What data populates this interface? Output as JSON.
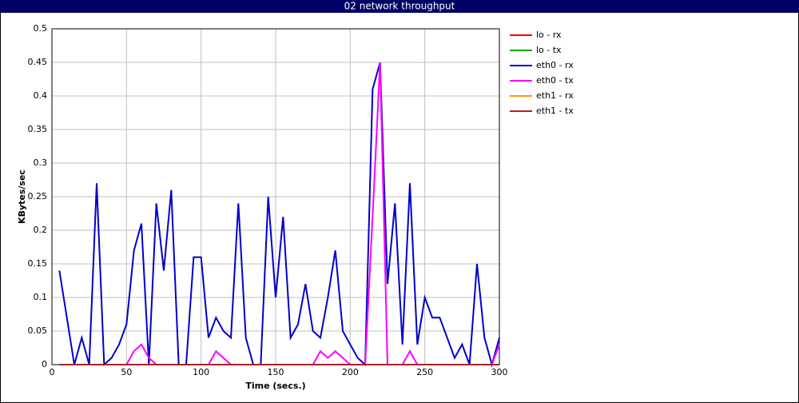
{
  "chart_data": {
    "type": "line",
    "title": "02 network throughput",
    "x_label": "Time (secs.)",
    "y_label": "KBytes/sec",
    "xlim": [
      0,
      300
    ],
    "xticks": [
      0,
      50,
      100,
      150,
      200,
      250,
      300
    ],
    "ylim": [
      0,
      0.5
    ],
    "yticks": [
      0,
      0.05,
      0.1,
      0.15,
      0.2,
      0.25,
      0.3,
      0.35,
      0.4,
      0.45,
      0.5
    ],
    "grid": true,
    "legend": "right",
    "x": [
      5,
      10,
      15,
      20,
      25,
      30,
      35,
      40,
      45,
      50,
      55,
      60,
      65,
      70,
      75,
      80,
      85,
      90,
      95,
      100,
      105,
      110,
      115,
      120,
      125,
      130,
      135,
      140,
      145,
      150,
      155,
      160,
      165,
      170,
      175,
      180,
      185,
      190,
      195,
      200,
      205,
      210,
      215,
      220,
      225,
      230,
      235,
      240,
      245,
      250,
      255,
      260,
      265,
      270,
      275,
      280,
      285,
      290,
      295,
      300
    ],
    "series": [
      {
        "name": "lo - rx",
        "color": "#ff0000",
        "values": [
          0,
          0,
          0,
          0,
          0,
          0,
          0,
          0,
          0,
          0,
          0,
          0,
          0,
          0,
          0,
          0,
          0,
          0,
          0,
          0,
          0,
          0,
          0,
          0,
          0,
          0,
          0,
          0,
          0,
          0,
          0,
          0,
          0,
          0,
          0,
          0,
          0,
          0,
          0,
          0,
          0,
          0,
          0,
          0,
          0,
          0,
          0,
          0,
          0,
          0,
          0,
          0,
          0,
          0,
          0,
          0,
          0,
          0,
          0,
          0
        ]
      },
      {
        "name": "lo - tx",
        "color": "#00aa00",
        "values": [
          0,
          0,
          0,
          0,
          0,
          0,
          0,
          0,
          0,
          0,
          0,
          0,
          0,
          0,
          0,
          0,
          0,
          0,
          0,
          0,
          0,
          0,
          0,
          0,
          0,
          0,
          0,
          0,
          0,
          0,
          0,
          0,
          0,
          0,
          0,
          0,
          0,
          0,
          0,
          0,
          0,
          0,
          0,
          0,
          0,
          0,
          0,
          0,
          0,
          0,
          0,
          0,
          0,
          0,
          0,
          0,
          0,
          0,
          0,
          0
        ]
      },
      {
        "name": "eth0 - rx",
        "color": "#0000cc",
        "values": [
          0.14,
          0.07,
          0,
          0.04,
          0,
          0.27,
          0,
          0.01,
          0.03,
          0.06,
          0.17,
          0.21,
          0,
          0.24,
          0.14,
          0.26,
          0,
          0,
          0.16,
          0.16,
          0.04,
          0.07,
          0.05,
          0.04,
          0.24,
          0.04,
          0,
          0,
          0.25,
          0.1,
          0.22,
          0.04,
          0.06,
          0.12,
          0.05,
          0.04,
          0.1,
          0.17,
          0.05,
          0.03,
          0.01,
          0,
          0.41,
          0.45,
          0.12,
          0.24,
          0.03,
          0.27,
          0.03,
          0.1,
          0.07,
          0.07,
          0.04,
          0.01,
          0.03,
          0,
          0.15,
          0.04,
          0,
          0.04
        ]
      },
      {
        "name": "eth0 - tx",
        "color": "#ff00ff",
        "values": [
          0,
          0,
          0,
          0,
          0,
          0,
          0,
          0,
          0,
          0,
          0.02,
          0.03,
          0.01,
          0,
          0,
          0,
          0,
          0,
          0,
          0,
          0,
          0.02,
          0.01,
          0,
          0,
          0,
          0,
          0,
          0,
          0,
          0,
          0,
          0,
          0,
          0,
          0.02,
          0.01,
          0.02,
          0.01,
          0,
          0,
          0,
          0.22,
          0.45,
          0,
          0,
          0,
          0.02,
          0,
          0,
          0,
          0,
          0,
          0,
          0,
          0,
          0,
          0,
          0,
          0.03
        ]
      },
      {
        "name": "eth1 - rx",
        "color": "#ff9900",
        "values": [
          0,
          0,
          0,
          0,
          0,
          0,
          0,
          0,
          0,
          0,
          0,
          0,
          0,
          0,
          0,
          0,
          0,
          0,
          0,
          0,
          0,
          0,
          0,
          0,
          0,
          0,
          0,
          0,
          0,
          0,
          0,
          0,
          0,
          0,
          0,
          0,
          0,
          0,
          0,
          0,
          0,
          0,
          0,
          0,
          0,
          0,
          0,
          0,
          0,
          0,
          0,
          0,
          0,
          0,
          0,
          0,
          0,
          0,
          0,
          0
        ]
      },
      {
        "name": "eth1 - tx",
        "color": "#aa2222",
        "values": [
          0,
          0,
          0,
          0,
          0,
          0,
          0,
          0,
          0,
          0,
          0,
          0,
          0,
          0,
          0,
          0,
          0,
          0,
          0,
          0,
          0,
          0,
          0,
          0,
          0,
          0,
          0,
          0,
          0,
          0,
          0,
          0,
          0,
          0,
          0,
          0,
          0,
          0,
          0,
          0,
          0,
          0,
          0,
          0,
          0,
          0,
          0,
          0,
          0,
          0,
          0,
          0,
          0,
          0,
          0,
          0,
          0,
          0,
          0,
          0
        ]
      }
    ]
  }
}
